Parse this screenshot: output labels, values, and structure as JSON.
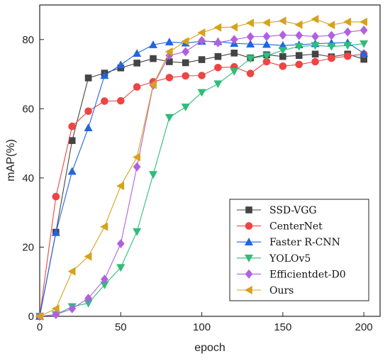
{
  "chart_data": {
    "type": "line",
    "title": "",
    "xlabel": "epoch",
    "ylabel": "mAP(%)",
    "xlim": [
      0,
      210
    ],
    "ylim": [
      0,
      90
    ],
    "xticks": [
      0,
      50,
      100,
      150,
      200
    ],
    "yticks": [
      0,
      20,
      40,
      60,
      80
    ],
    "grid": false,
    "legend_position": "lower-right",
    "series": [
      {
        "name": "SSD-VGG",
        "color": "#444444",
        "marker": "square",
        "x": [
          0,
          10,
          20,
          30,
          40,
          50,
          60,
          70,
          80,
          90,
          100,
          110,
          120,
          130,
          140,
          150,
          160,
          170,
          180,
          190,
          200
        ],
        "values": [
          0,
          24.3,
          50.8,
          68.9,
          70.3,
          71.8,
          73.2,
          74.5,
          73.6,
          73.3,
          74.2,
          75.1,
          76.1,
          74.7,
          75.6,
          75.1,
          75.4,
          75.8,
          75.0,
          75.8,
          74.3
        ]
      },
      {
        "name": "CenterNet",
        "color": "#ee4444",
        "marker": "circle",
        "x": [
          0,
          10,
          20,
          30,
          40,
          50,
          60,
          70,
          80,
          90,
          100,
          110,
          120,
          130,
          140,
          150,
          160,
          170,
          180,
          190,
          200
        ],
        "values": [
          0,
          34.6,
          54.9,
          59.3,
          62.2,
          62.3,
          66.3,
          67.8,
          69.0,
          69.5,
          69.6,
          71.9,
          72.1,
          70.2,
          73.6,
          72.3,
          72.8,
          73.6,
          74.6,
          75.2,
          75.8
        ]
      },
      {
        "name": "Faster R-CNN",
        "color": "#2266dd",
        "marker": "triangle-up",
        "x": [
          0,
          10,
          20,
          30,
          40,
          50,
          60,
          70,
          80,
          90,
          100,
          110,
          120,
          130,
          140,
          150,
          160,
          170,
          180,
          190,
          200
        ],
        "values": [
          0,
          24.2,
          41.9,
          54.5,
          69.6,
          72.7,
          76.0,
          78.5,
          79.3,
          79.0,
          79.5,
          79.4,
          78.9,
          78.7,
          78.6,
          78.3,
          78.5,
          78.8,
          79.0,
          79.1,
          76.0
        ]
      },
      {
        "name": "YOLOv5",
        "color": "#2ebd7a",
        "marker": "triangle-down",
        "x": [
          0,
          10,
          20,
          30,
          40,
          50,
          60,
          70,
          80,
          90,
          100,
          110,
          120,
          130,
          140,
          150,
          160,
          170,
          180,
          190,
          200
        ],
        "values": [
          0,
          0.5,
          2.8,
          3.8,
          9.1,
          14.1,
          24.5,
          41.0,
          57.5,
          60.5,
          64.7,
          67.2,
          70.8,
          74.5,
          75.3,
          76.9,
          78.0,
          78.3,
          78.0,
          78.3,
          78.8
        ]
      },
      {
        "name": "Efficientdet-D0",
        "color": "#b060e0",
        "marker": "diamond",
        "x": [
          0,
          10,
          20,
          30,
          40,
          50,
          60,
          70,
          80,
          90,
          100,
          110,
          120,
          130,
          140,
          150,
          160,
          170,
          180,
          190,
          200
        ],
        "values": [
          0,
          0.5,
          2.2,
          5.2,
          10.7,
          21.0,
          43.2,
          66.8,
          75.4,
          76.5,
          79.7,
          79.1,
          80.0,
          80.8,
          80.9,
          81.3,
          81.2,
          80.9,
          81.2,
          82.2,
          82.7
        ]
      },
      {
        "name": "Ours",
        "color": "#d7a21a",
        "marker": "triangle-left",
        "x": [
          0,
          10,
          20,
          30,
          40,
          50,
          60,
          70,
          80,
          90,
          100,
          110,
          120,
          130,
          140,
          150,
          160,
          170,
          180,
          190,
          200
        ],
        "values": [
          0,
          2.2,
          13.0,
          17.3,
          25.9,
          37.7,
          46.0,
          66.9,
          76.5,
          79.5,
          82.0,
          83.5,
          83.6,
          84.8,
          84.9,
          85.4,
          84.3,
          85.9,
          84.2,
          85.1,
          85.1
        ]
      }
    ]
  }
}
